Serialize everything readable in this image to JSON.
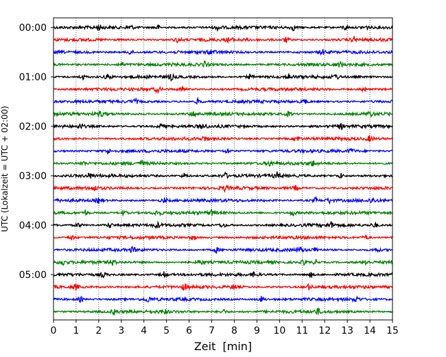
{
  "chart_data": {
    "type": "line",
    "xlabel": "Zeit  [min]",
    "ylabel": "UTC (Lokalzeit = UTC + 02:00)",
    "xlim": [
      0,
      15
    ],
    "x_ticks": [
      0,
      1,
      2,
      3,
      4,
      5,
      6,
      7,
      8,
      9,
      10,
      11,
      12,
      13,
      14,
      15
    ],
    "x_tick_labels": [
      "0",
      "1",
      "2",
      "3",
      "4",
      "5",
      "6",
      "7",
      "8",
      "9",
      "10",
      "11",
      "12",
      "13",
      "14",
      "15"
    ],
    "y_tick_labels": [
      "00:00",
      "01:00",
      "02:00",
      "03:00",
      "04:00",
      "05:00"
    ],
    "grid": "vertical dotted",
    "trace_minutes": 15,
    "traces_per_hour": 4,
    "trace_colors": [
      "#000000",
      "#ff0000",
      "#0000ff",
      "#008000"
    ],
    "traces": [
      {
        "start": "00:00",
        "bursts": [
          2.0,
          3.4,
          4.6,
          7.3,
          10.6,
          12.9,
          13.8
        ]
      },
      {
        "start": "00:15",
        "bursts": [
          5.5,
          7.8,
          10.3,
          13.3
        ]
      },
      {
        "start": "00:30",
        "bursts": [
          3.4,
          7.0,
          11.9
        ]
      },
      {
        "start": "00:45",
        "bursts": [
          3.0,
          6.7,
          12.7
        ]
      },
      {
        "start": "01:00",
        "bursts": [
          1.3,
          2.4,
          5.2,
          8.7,
          10.4,
          12.5
        ]
      },
      {
        "start": "01:15",
        "bursts": [
          4.6,
          5.7,
          13.7
        ]
      },
      {
        "start": "01:30",
        "bursts": [
          3.6,
          6.4,
          11.1
        ]
      },
      {
        "start": "01:45",
        "bursts": [
          2.1,
          6.2,
          10.4,
          14.0
        ]
      },
      {
        "start": "02:00",
        "bursts": [
          1.2,
          4.8,
          6.6,
          12.7
        ]
      },
      {
        "start": "02:15",
        "bursts": [
          6.7,
          10.8,
          14.0
        ]
      },
      {
        "start": "02:30",
        "bursts": [
          2.4,
          7.7,
          13.2
        ]
      },
      {
        "start": "02:45",
        "bursts": [
          1.3,
          3.9,
          9.6,
          11.5
        ]
      },
      {
        "start": "03:00",
        "bursts": [
          1.6,
          5.8,
          7.6,
          9.9,
          12.7
        ]
      },
      {
        "start": "03:15",
        "bursts": [
          1.8,
          7.6,
          10.7
        ]
      },
      {
        "start": "03:30",
        "bursts": [
          2.0,
          4.9,
          11.6,
          12.2,
          14.1
        ]
      },
      {
        "start": "03:45",
        "bursts": [
          1.4,
          3.1,
          4.6,
          7.0,
          10.6
        ]
      },
      {
        "start": "04:00",
        "bursts": [
          1.1,
          2.5,
          4.6,
          7.5,
          12.3,
          14.2
        ]
      },
      {
        "start": "04:15",
        "bursts": [
          0.8,
          6.2,
          13.8
        ]
      },
      {
        "start": "04:30",
        "bursts": [
          3.5,
          7.2,
          10.9,
          11.6,
          14.3
        ]
      },
      {
        "start": "04:45",
        "bursts": [
          0.4,
          2.6,
          6.5,
          11.1,
          11.6,
          13.8
        ]
      },
      {
        "start": "05:00",
        "bursts": [
          2.2,
          4.9,
          8.9,
          11.4
        ]
      },
      {
        "start": "05:15",
        "bursts": [
          1.0,
          5.8,
          8.0,
          11.3
        ]
      },
      {
        "start": "05:30",
        "bursts": [
          1.2,
          4.2,
          9.2,
          13.4
        ]
      },
      {
        "start": "05:45",
        "bursts": [
          2.7,
          4.9,
          7.5,
          11.7
        ]
      }
    ]
  }
}
